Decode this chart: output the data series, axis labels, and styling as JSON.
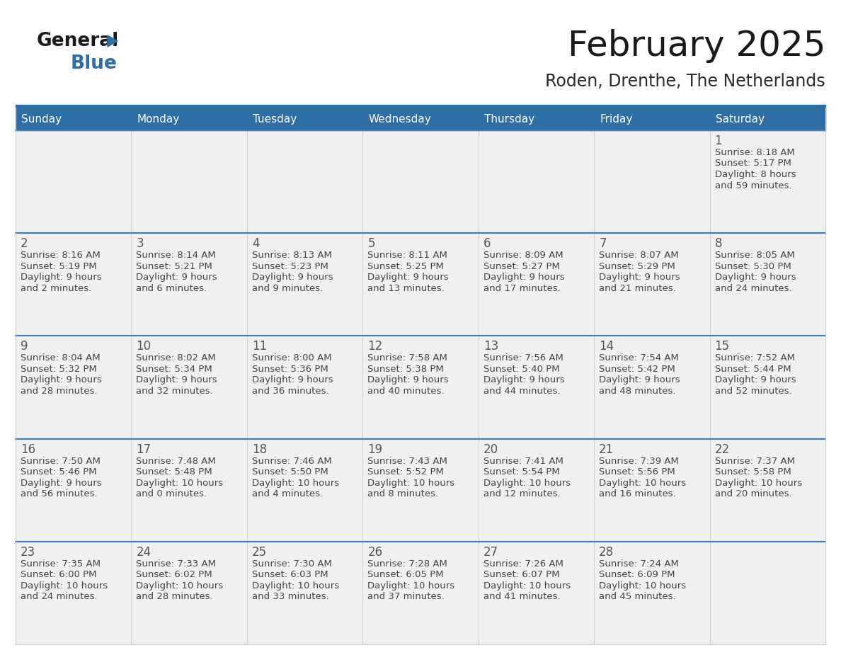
{
  "title": "February 2025",
  "subtitle": "Roden, Drenthe, The Netherlands",
  "days_of_week": [
    "Sunday",
    "Monday",
    "Tuesday",
    "Wednesday",
    "Thursday",
    "Friday",
    "Saturday"
  ],
  "header_bg": "#2E6EA6",
  "header_text": "#FFFFFF",
  "cell_bg_gray": "#F0F0F0",
  "cell_bg_white": "#FFFFFF",
  "row_separator_color": "#3A7CBF",
  "cell_border_color": "#CCCCCC",
  "day_number_color": "#555555",
  "cell_text_color": "#444444",
  "title_color": "#1A1A1A",
  "subtitle_color": "#2A2A2A",
  "logo_general_color": "#1A1A1A",
  "logo_blue_color": "#2E6EA6",
  "weeks": [
    [
      {
        "day": null,
        "info": ""
      },
      {
        "day": null,
        "info": ""
      },
      {
        "day": null,
        "info": ""
      },
      {
        "day": null,
        "info": ""
      },
      {
        "day": null,
        "info": ""
      },
      {
        "day": null,
        "info": ""
      },
      {
        "day": 1,
        "info": "Sunrise: 8:18 AM\nSunset: 5:17 PM\nDaylight: 8 hours\nand 59 minutes."
      }
    ],
    [
      {
        "day": 2,
        "info": "Sunrise: 8:16 AM\nSunset: 5:19 PM\nDaylight: 9 hours\nand 2 minutes."
      },
      {
        "day": 3,
        "info": "Sunrise: 8:14 AM\nSunset: 5:21 PM\nDaylight: 9 hours\nand 6 minutes."
      },
      {
        "day": 4,
        "info": "Sunrise: 8:13 AM\nSunset: 5:23 PM\nDaylight: 9 hours\nand 9 minutes."
      },
      {
        "day": 5,
        "info": "Sunrise: 8:11 AM\nSunset: 5:25 PM\nDaylight: 9 hours\nand 13 minutes."
      },
      {
        "day": 6,
        "info": "Sunrise: 8:09 AM\nSunset: 5:27 PM\nDaylight: 9 hours\nand 17 minutes."
      },
      {
        "day": 7,
        "info": "Sunrise: 8:07 AM\nSunset: 5:29 PM\nDaylight: 9 hours\nand 21 minutes."
      },
      {
        "day": 8,
        "info": "Sunrise: 8:05 AM\nSunset: 5:30 PM\nDaylight: 9 hours\nand 24 minutes."
      }
    ],
    [
      {
        "day": 9,
        "info": "Sunrise: 8:04 AM\nSunset: 5:32 PM\nDaylight: 9 hours\nand 28 minutes."
      },
      {
        "day": 10,
        "info": "Sunrise: 8:02 AM\nSunset: 5:34 PM\nDaylight: 9 hours\nand 32 minutes."
      },
      {
        "day": 11,
        "info": "Sunrise: 8:00 AM\nSunset: 5:36 PM\nDaylight: 9 hours\nand 36 minutes."
      },
      {
        "day": 12,
        "info": "Sunrise: 7:58 AM\nSunset: 5:38 PM\nDaylight: 9 hours\nand 40 minutes."
      },
      {
        "day": 13,
        "info": "Sunrise: 7:56 AM\nSunset: 5:40 PM\nDaylight: 9 hours\nand 44 minutes."
      },
      {
        "day": 14,
        "info": "Sunrise: 7:54 AM\nSunset: 5:42 PM\nDaylight: 9 hours\nand 48 minutes."
      },
      {
        "day": 15,
        "info": "Sunrise: 7:52 AM\nSunset: 5:44 PM\nDaylight: 9 hours\nand 52 minutes."
      }
    ],
    [
      {
        "day": 16,
        "info": "Sunrise: 7:50 AM\nSunset: 5:46 PM\nDaylight: 9 hours\nand 56 minutes."
      },
      {
        "day": 17,
        "info": "Sunrise: 7:48 AM\nSunset: 5:48 PM\nDaylight: 10 hours\nand 0 minutes."
      },
      {
        "day": 18,
        "info": "Sunrise: 7:46 AM\nSunset: 5:50 PM\nDaylight: 10 hours\nand 4 minutes."
      },
      {
        "day": 19,
        "info": "Sunrise: 7:43 AM\nSunset: 5:52 PM\nDaylight: 10 hours\nand 8 minutes."
      },
      {
        "day": 20,
        "info": "Sunrise: 7:41 AM\nSunset: 5:54 PM\nDaylight: 10 hours\nand 12 minutes."
      },
      {
        "day": 21,
        "info": "Sunrise: 7:39 AM\nSunset: 5:56 PM\nDaylight: 10 hours\nand 16 minutes."
      },
      {
        "day": 22,
        "info": "Sunrise: 7:37 AM\nSunset: 5:58 PM\nDaylight: 10 hours\nand 20 minutes."
      }
    ],
    [
      {
        "day": 23,
        "info": "Sunrise: 7:35 AM\nSunset: 6:00 PM\nDaylight: 10 hours\nand 24 minutes."
      },
      {
        "day": 24,
        "info": "Sunrise: 7:33 AM\nSunset: 6:02 PM\nDaylight: 10 hours\nand 28 minutes."
      },
      {
        "day": 25,
        "info": "Sunrise: 7:30 AM\nSunset: 6:03 PM\nDaylight: 10 hours\nand 33 minutes."
      },
      {
        "day": 26,
        "info": "Sunrise: 7:28 AM\nSunset: 6:05 PM\nDaylight: 10 hours\nand 37 minutes."
      },
      {
        "day": 27,
        "info": "Sunrise: 7:26 AM\nSunset: 6:07 PM\nDaylight: 10 hours\nand 41 minutes."
      },
      {
        "day": 28,
        "info": "Sunrise: 7:24 AM\nSunset: 6:09 PM\nDaylight: 10 hours\nand 45 minutes."
      },
      {
        "day": null,
        "info": ""
      }
    ]
  ]
}
